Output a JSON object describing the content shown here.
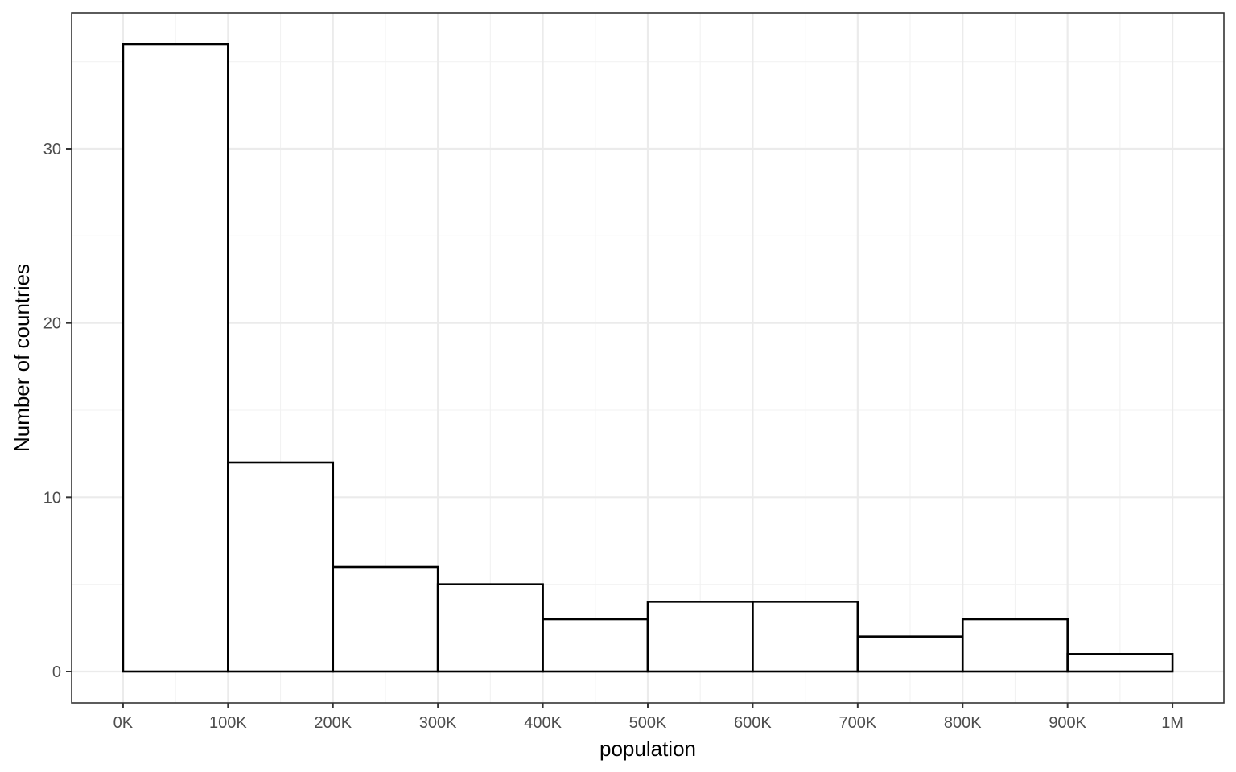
{
  "chart_data": {
    "type": "bar",
    "title": "",
    "xlabel": "population",
    "ylabel": "Number of countries",
    "x_tick_labels": [
      "0K",
      "100K",
      "200K",
      "300K",
      "400K",
      "500K",
      "600K",
      "700K",
      "800K",
      "900K",
      "1M"
    ],
    "y_tick_labels": [
      "0",
      "10",
      "20",
      "30"
    ],
    "bins": [
      {
        "start": 0,
        "end": 100000,
        "count": 36
      },
      {
        "start": 100000,
        "end": 200000,
        "count": 12
      },
      {
        "start": 200000,
        "end": 300000,
        "count": 6
      },
      {
        "start": 300000,
        "end": 400000,
        "count": 5
      },
      {
        "start": 400000,
        "end": 500000,
        "count": 3
      },
      {
        "start": 500000,
        "end": 600000,
        "count": 4
      },
      {
        "start": 600000,
        "end": 700000,
        "count": 4
      },
      {
        "start": 700000,
        "end": 800000,
        "count": 2
      },
      {
        "start": 800000,
        "end": 900000,
        "count": 3
      },
      {
        "start": 900000,
        "end": 1000000,
        "count": 1
      }
    ],
    "x_ticks": [
      0,
      100000,
      200000,
      300000,
      400000,
      500000,
      600000,
      700000,
      800000,
      900000,
      1000000
    ],
    "y_ticks": [
      0,
      10,
      20,
      30
    ],
    "xlim": [
      -49000,
      1049000
    ],
    "ylim": [
      -1.8,
      37.8
    ],
    "grid": true,
    "legend": "none",
    "colors": {
      "bar_fill": "#ffffff",
      "bar_outline": "#000000",
      "grid": "#ebebeb"
    }
  }
}
